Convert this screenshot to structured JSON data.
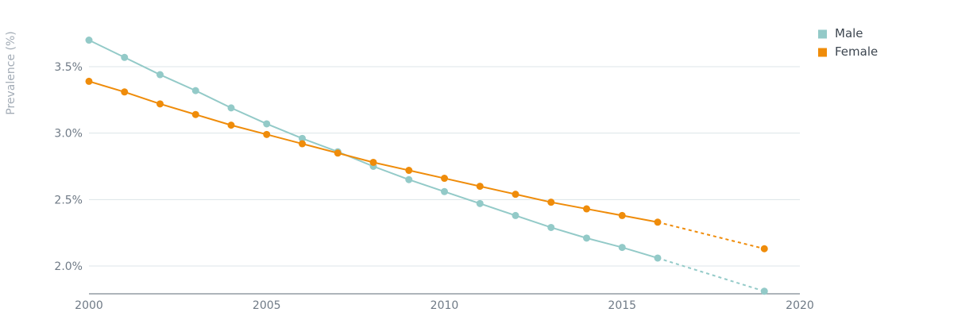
{
  "chart_data": {
    "type": "line",
    "title": "",
    "xlabel": "",
    "ylabel": "Prevalence (%)",
    "xlim": [
      2000,
      2020
    ],
    "ylim": [
      1.8,
      3.8
    ],
    "x_ticks": [
      2000,
      2005,
      2010,
      2015,
      2020
    ],
    "x_tick_labels": [
      "2000",
      "2005",
      "2010",
      "2015",
      "2020"
    ],
    "y_ticks": [
      2.0,
      2.5,
      3.0,
      3.5
    ],
    "y_tick_labels": [
      "2.0%",
      "2.5%",
      "3.0%",
      "3.5%"
    ],
    "grid": "horizontal",
    "legend_position": "top-right",
    "series": [
      {
        "name": "Male",
        "color": "#93cac8",
        "points": [
          [
            2000,
            3.7
          ],
          [
            2001,
            3.57
          ],
          [
            2002,
            3.44
          ],
          [
            2003,
            3.32
          ],
          [
            2004,
            3.19
          ],
          [
            2005,
            3.07
          ],
          [
            2006,
            2.96
          ],
          [
            2007,
            2.86
          ],
          [
            2008,
            2.75
          ],
          [
            2009,
            2.65
          ],
          [
            2010,
            2.56
          ],
          [
            2011,
            2.47
          ],
          [
            2012,
            2.38
          ],
          [
            2013,
            2.29
          ],
          [
            2014,
            2.21
          ],
          [
            2015,
            2.14
          ],
          [
            2016,
            2.06
          ]
        ],
        "projected": [
          [
            2016,
            2.06
          ],
          [
            2019,
            1.81
          ]
        ]
      },
      {
        "name": "Female",
        "color": "#ef8c0a",
        "points": [
          [
            2000,
            3.39
          ],
          [
            2001,
            3.31
          ],
          [
            2002,
            3.22
          ],
          [
            2003,
            3.14
          ],
          [
            2004,
            3.06
          ],
          [
            2005,
            2.99
          ],
          [
            2006,
            2.92
          ],
          [
            2007,
            2.85
          ],
          [
            2008,
            2.78
          ],
          [
            2009,
            2.72
          ],
          [
            2010,
            2.66
          ],
          [
            2011,
            2.6
          ],
          [
            2012,
            2.54
          ],
          [
            2013,
            2.48
          ],
          [
            2014,
            2.43
          ],
          [
            2015,
            2.38
          ],
          [
            2016,
            2.33
          ]
        ],
        "projected": [
          [
            2016,
            2.33
          ],
          [
            2019,
            2.13
          ]
        ]
      }
    ]
  }
}
